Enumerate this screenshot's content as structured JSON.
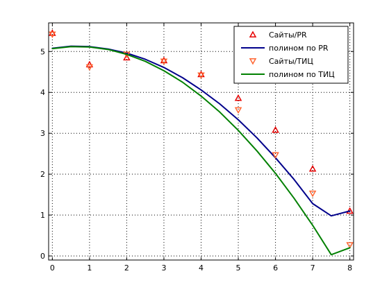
{
  "chart_data": {
    "type": "scatter",
    "title": "",
    "xlabel": "",
    "ylabel": "",
    "xlim": [
      -0.1,
      8.1
    ],
    "ylim": [
      -0.1,
      5.7
    ],
    "xticks": [
      0,
      1,
      2,
      3,
      4,
      5,
      6,
      7,
      8
    ],
    "yticks": [
      0,
      1,
      2,
      3,
      4,
      5
    ],
    "grid": true,
    "legend_position": "top-right",
    "series": [
      {
        "name": "Сайты/PR",
        "kind": "markers",
        "marker": "triangle-up",
        "color": "#e60000",
        "x": [
          0,
          1,
          2,
          3,
          4,
          5,
          6,
          7,
          8
        ],
        "y": [
          5.45,
          4.68,
          4.85,
          4.78,
          4.44,
          3.86,
          3.08,
          2.13,
          1.1
        ]
      },
      {
        "name": "полином по PR",
        "kind": "line",
        "color": "#00008b",
        "x": [
          0,
          0.5,
          1,
          1.5,
          2,
          2.5,
          3,
          3.5,
          4,
          4.5,
          5,
          5.5,
          6,
          6.5,
          7,
          7.5,
          8
        ],
        "y": [
          5.08,
          5.13,
          5.12,
          5.06,
          4.96,
          4.81,
          4.61,
          4.36,
          4.06,
          3.72,
          3.33,
          2.89,
          2.4,
          1.87,
          1.28,
          0.98,
          1.1
        ]
      },
      {
        "name": "Сайты/ТИЦ",
        "kind": "markers",
        "marker": "triangle-down",
        "color": "#ff6633",
        "x": [
          0,
          1,
          2,
          3,
          4,
          5,
          6,
          7,
          8
        ],
        "y": [
          5.42,
          4.62,
          4.93,
          4.76,
          4.42,
          3.57,
          2.47,
          1.53,
          0.27
        ]
      },
      {
        "name": "полином по ТИЦ",
        "kind": "line",
        "color": "#008000",
        "x": [
          0,
          0.5,
          1,
          1.5,
          2,
          2.5,
          3,
          3.5,
          4,
          4.5,
          5,
          5.5,
          6,
          6.5,
          7,
          7.5,
          8
        ],
        "y": [
          5.07,
          5.12,
          5.11,
          5.05,
          4.93,
          4.76,
          4.53,
          4.25,
          3.91,
          3.52,
          3.07,
          2.57,
          2.02,
          1.41,
          0.75,
          0.03,
          0.2
        ]
      }
    ]
  }
}
